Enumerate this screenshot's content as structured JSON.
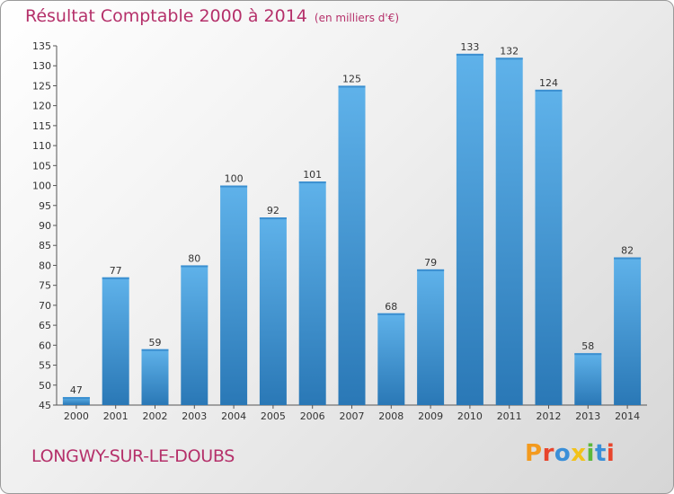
{
  "header": {
    "title": "Résultat Comptable 2000 à 2014",
    "unit": "(en milliers d'€)"
  },
  "footer": {
    "city": "LONGWY-SUR-LE-DOUBS",
    "logo_text": "Proxiti"
  },
  "colors": {
    "bar_light": "#5aaee6",
    "bar_dark": "#2a7ab8",
    "title": "#b5306a"
  },
  "chart_data": {
    "type": "bar",
    "title": "Résultat Comptable 2000 à 2014",
    "categories": [
      "2000",
      "2001",
      "2002",
      "2003",
      "2004",
      "2005",
      "2006",
      "2007",
      "2008",
      "2009",
      "2010",
      "2011",
      "2012",
      "2013",
      "2014"
    ],
    "values": [
      47,
      77,
      59,
      80,
      100,
      92,
      101,
      125,
      68,
      79,
      133,
      132,
      124,
      58,
      82
    ],
    "ylim": [
      45,
      135
    ],
    "yticks": [
      45,
      50,
      55,
      60,
      65,
      70,
      75,
      80,
      85,
      90,
      95,
      100,
      105,
      110,
      115,
      120,
      125,
      130,
      135
    ],
    "xlabel": "",
    "ylabel": "",
    "grid": false
  }
}
